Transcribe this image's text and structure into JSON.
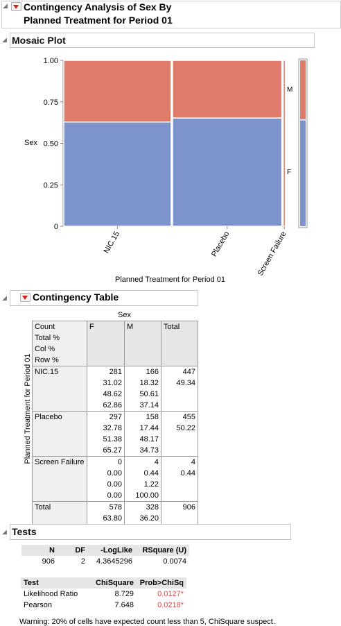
{
  "report": {
    "title_line1": "Contingency Analysis of Sex By",
    "title_line2": "Planned Treatment for Period 01"
  },
  "mosaic": {
    "header": "Mosaic Plot",
    "ylabel": "Sex",
    "xlabel": "Planned Treatment for Period 01",
    "right_labels": [
      "M",
      "F"
    ]
  },
  "chart_data": {
    "type": "mosaic",
    "title": "",
    "xlabel": "Planned Treatment for Period 01",
    "ylabel": "Sex",
    "ylim": [
      0,
      1
    ],
    "yticks": [
      "0",
      "0.25",
      "0.50",
      "0.75",
      "1.00"
    ],
    "categories": [
      "NIC.15",
      "Placebo",
      "Screen Failure"
    ],
    "column_widths": [
      0.4934,
      0.5022,
      0.0044
    ],
    "series": [
      {
        "name": "F",
        "values": [
          0.6286,
          0.6527,
          0.0
        ],
        "color": "#7c93cc"
      },
      {
        "name": "M",
        "values": [
          0.3714,
          0.3473,
          1.0
        ],
        "color": "#df7b6b"
      }
    ],
    "marginal": {
      "F": 0.638,
      "M": 0.362
    }
  },
  "contingency": {
    "header": "Contingency Table",
    "col_group_label": "Sex",
    "row_group_label": "Planned Treatment for Period 01",
    "legend": [
      "Count",
      "Total %",
      "Col %",
      "Row %"
    ],
    "columns": [
      "F",
      "M",
      "Total"
    ],
    "rows": [
      {
        "label": "NIC.15",
        "F": [
          "281",
          "31.02",
          "48.62",
          "62.86"
        ],
        "M": [
          "166",
          "18.32",
          "50.61",
          "37.14"
        ],
        "Total": [
          "447",
          "49.34"
        ]
      },
      {
        "label": "Placebo",
        "F": [
          "297",
          "32.78",
          "51.38",
          "65.27"
        ],
        "M": [
          "158",
          "17.44",
          "48.17",
          "34.73"
        ],
        "Total": [
          "455",
          "50.22"
        ]
      },
      {
        "label": "Screen Failure",
        "F": [
          "0",
          "0.00",
          "0.00",
          "0.00"
        ],
        "M": [
          "4",
          "0.44",
          "1.22",
          "100.00"
        ],
        "Total": [
          "4",
          "0.44"
        ]
      }
    ],
    "total_row": {
      "label": "Total",
      "F": [
        "578",
        "63.80"
      ],
      "M": [
        "328",
        "36.20"
      ],
      "Total": [
        "906"
      ]
    }
  },
  "tests": {
    "header": "Tests",
    "summary_headers": [
      "N",
      "DF",
      "-LogLike",
      "RSquare (U)"
    ],
    "summary_values": [
      "906",
      "2",
      "4.3645296",
      "0.0074"
    ],
    "chi_headers": [
      "Test",
      "ChiSquare",
      "Prob>ChiSq"
    ],
    "chi_rows": [
      {
        "test": "Likelihood Ratio",
        "chisq": "8.729",
        "p": "0.0127*"
      },
      {
        "test": "Pearson",
        "chisq": "7.648",
        "p": "0.0218*"
      }
    ],
    "warning": "Warning: 20% of cells have expected count less than 5, ChiSquare suspect."
  }
}
